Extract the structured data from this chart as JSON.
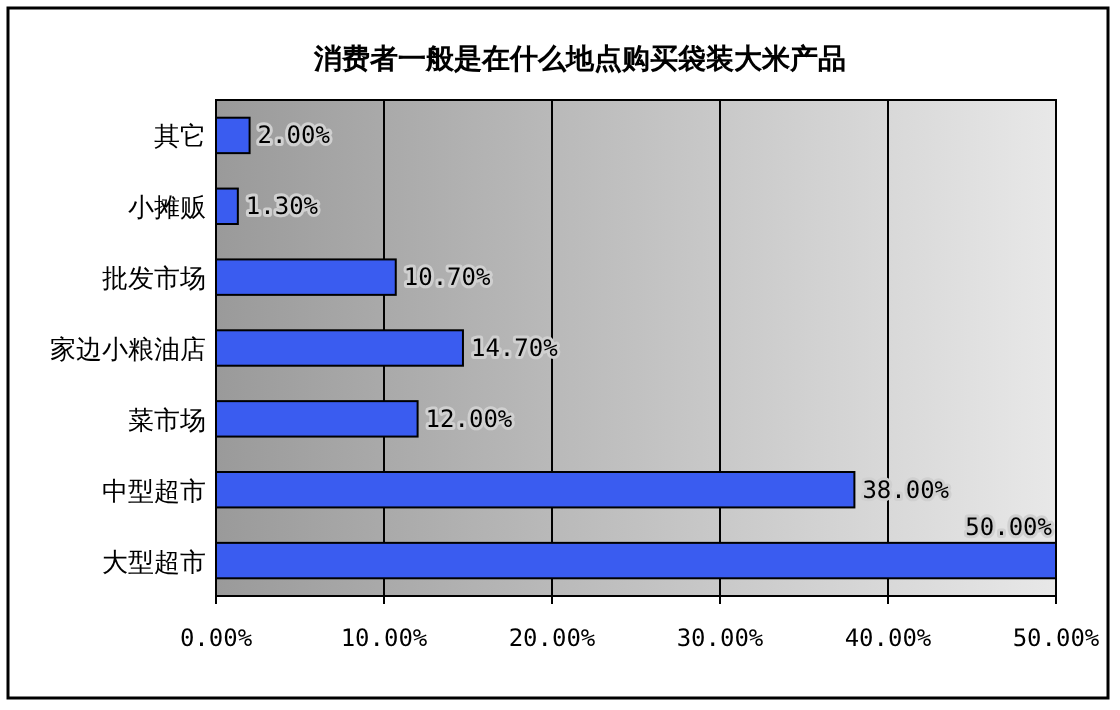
{
  "chart_data": {
    "type": "bar",
    "orientation": "horizontal",
    "title": "消费者一般是在什么地点购买袋装大米产品",
    "categories": [
      "其它",
      "小摊贩",
      "批发市场",
      "家边小粮油店",
      "菜市场",
      "中型超市",
      "大型超市"
    ],
    "values": [
      2,
      1.3,
      10.7,
      14.7,
      12,
      38,
      50
    ],
    "value_labels": [
      "2.00%",
      "1.30%",
      "10.70%",
      "14.70%",
      "12.00%",
      "38.00%",
      "50.00%"
    ],
    "color": "#3a5cf0",
    "xlim": [
      0,
      50
    ],
    "xticks": [
      {
        "value": 0,
        "label": "0.00%"
      },
      {
        "value": 10,
        "label": "10.00%"
      },
      {
        "value": 20,
        "label": "20.00%"
      },
      {
        "value": 30,
        "label": "30.00%"
      },
      {
        "value": 40,
        "label": "40.00%"
      },
      {
        "value": 50,
        "label": "50.00%"
      }
    ],
    "grid": "x"
  }
}
